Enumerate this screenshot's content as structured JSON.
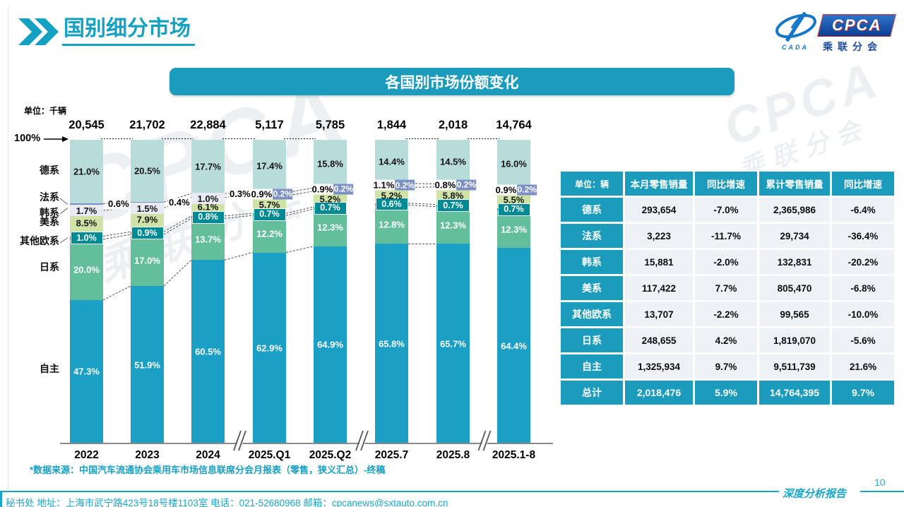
{
  "header": {
    "title": "国别细分市场"
  },
  "chart": {
    "title_bar": "各国别市场份额变化"
  },
  "logo": {
    "cpca": "CPCA",
    "sub": "乘联分会",
    "cada": "CADA"
  },
  "watermark": {
    "line1": "CPCA",
    "line2": "乘联分会"
  },
  "chart_data": {
    "type": "bar",
    "subtype": "stacked-100-percent",
    "unit_label": "单位：千辆",
    "axis_top_label": "100%",
    "categories": [
      "2022",
      "2023",
      "2024",
      "2025.Q1",
      "2025.Q2",
      "2025.7",
      "2025.8",
      "2025.1-8"
    ],
    "totals": [
      "20,545",
      "21,702",
      "22,884",
      "5,117",
      "5,785",
      "1,844",
      "2,018",
      "14,764"
    ],
    "series": [
      {
        "key": "zizhu",
        "name": "自主",
        "color": "#1b9fc4",
        "label_color": "#ffffff",
        "values": [
          47.3,
          51.9,
          60.5,
          62.9,
          64.9,
          65.8,
          65.7,
          64.4
        ]
      },
      {
        "key": "rixi",
        "name": "日系",
        "color": "#63bf9b",
        "label_color": "#ffffff",
        "values": [
          20.0,
          17.0,
          13.7,
          12.2,
          12.3,
          12.8,
          12.3,
          12.3
        ]
      },
      {
        "key": "qitaouxi",
        "name": "其他欧系",
        "color": "#008b94",
        "label_color": "#ffffff",
        "values": [
          1.0,
          0.9,
          0.8,
          0.7,
          0.7,
          0.6,
          0.7,
          0.7
        ]
      },
      {
        "key": "meixi",
        "name": "美系",
        "color": "#cfe3a6",
        "label_color": "#141414",
        "values": [
          8.5,
          7.9,
          6.1,
          5.7,
          5.2,
          5.2,
          5.8,
          5.5
        ]
      },
      {
        "key": "hanxi",
        "name": "韩系",
        "color": "#e9eaf3",
        "label_color": "#141414",
        "values": [
          1.7,
          1.5,
          1.0,
          0.9,
          0.9,
          1.1,
          0.8,
          0.9
        ]
      },
      {
        "key": "faxi",
        "name": "法系",
        "color": "#7c90c6",
        "label_color": "#ffffff",
        "values": [
          0.6,
          0.4,
          0.3,
          0.2,
          0.2,
          0.2,
          0.2,
          0.2
        ]
      },
      {
        "key": "dexi",
        "name": "德系",
        "color": "#b8dcda",
        "label_color": "#141414",
        "values": [
          21.0,
          20.5,
          17.7,
          17.4,
          15.8,
          14.4,
          14.5,
          16.0
        ]
      }
    ],
    "breaks_after": [
      2,
      4,
      6
    ],
    "top_dash_gaps": [
      0,
      1,
      2,
      3,
      5,
      6
    ],
    "connector_gaps": [
      0,
      1,
      2,
      3,
      5
    ],
    "legend_position": "left",
    "grid": false
  },
  "footnote": "*数据来源：中国汽车流通协会乘用车市场信息联席分会月报表（零售，狭义汇总）-终稿",
  "table": {
    "unit_header": "单位：辆",
    "columns": [
      "本月零售销量",
      "同比增速",
      "累计零售销量",
      "同比增速"
    ],
    "rows": [
      {
        "name": "德系",
        "cells": [
          "293,654",
          "-7.0%",
          "2,365,986",
          "-6.4%"
        ]
      },
      {
        "name": "法系",
        "cells": [
          "3,223",
          "-11.7%",
          "29,734",
          "-36.4%"
        ]
      },
      {
        "name": "韩系",
        "cells": [
          "15,881",
          "-2.0%",
          "132,831",
          "-20.2%"
        ]
      },
      {
        "name": "美系",
        "cells": [
          "117,422",
          "7.7%",
          "805,470",
          "-6.8%"
        ]
      },
      {
        "name": "其他欧系",
        "cells": [
          "13,707",
          "-2.2%",
          "99,565",
          "-10.0%"
        ]
      },
      {
        "name": "日系",
        "cells": [
          "248,655",
          "4.2%",
          "1,819,070",
          "-5.6%"
        ]
      },
      {
        "name": "自主",
        "cells": [
          "1,325,934",
          "9.7%",
          "9,511,739",
          "21.6%"
        ]
      }
    ],
    "total_row": {
      "name": "总计",
      "cells": [
        "2,018,476",
        "5.9%",
        "14,764,395",
        "9.7%"
      ]
    }
  },
  "footer": {
    "secretary": "秘书处  地址：上海市武宁路423号18号楼1103室  电话：021-52680968  邮箱：cpcanews@sxtauto.com.cn",
    "report_label": "深度分析报告",
    "page_number": "10"
  },
  "colors": {
    "accent": "#14a1c2",
    "table_teal": "#1b9cbd",
    "axis": "#8a8a8a"
  }
}
